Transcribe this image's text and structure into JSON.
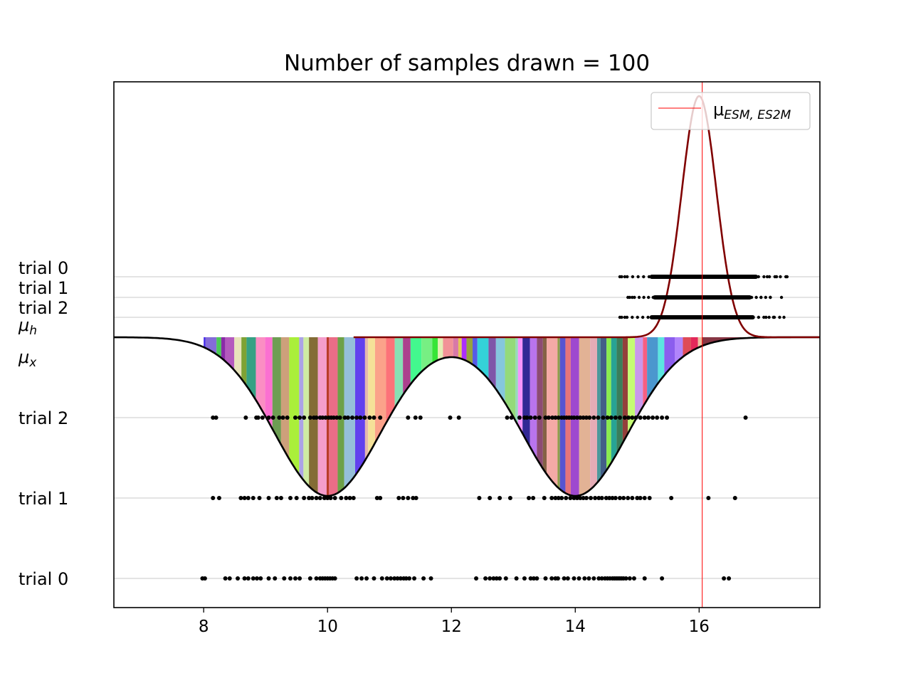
{
  "chart_data": {
    "type": "scatter",
    "title": "Number of samples drawn = 100",
    "xlabel": "",
    "ylabel": "",
    "xlim": [
      6.55,
      17.95
    ],
    "x_ticks": [
      "8",
      "10",
      "12",
      "14",
      "16"
    ],
    "x_tick_values": [
      8,
      10,
      12,
      14,
      16
    ],
    "y_labels": [
      {
        "id": "x0",
        "text": "trial 0",
        "sub": ""
      },
      {
        "id": "x1",
        "text": "trial 1",
        "sub": ""
      },
      {
        "id": "x2",
        "text": "trial 2",
        "sub": ""
      },
      {
        "id": "mux",
        "text": "μ",
        "sub": "x"
      },
      {
        "id": "muh",
        "text": "μ",
        "sub": "h"
      },
      {
        "id": "h2",
        "text": "trial 2",
        "sub": ""
      },
      {
        "id": "h1",
        "text": "trial 1",
        "sub": ""
      },
      {
        "id": "h0",
        "text": "trial 0",
        "sub": ""
      }
    ],
    "grid": "horizontal lines at trial rows",
    "legend": {
      "position": "top-right",
      "label": "μ",
      "label_sub": "ESM, ES2M",
      "color": "#ff0000"
    },
    "vline": {
      "x": 16.05,
      "color": "#ff0000"
    },
    "curves": {
      "input_density": {
        "color": "#000000",
        "modes": [
          10,
          14
        ],
        "sigma": 0.85,
        "description": "bimodal density plotted downward from baseline"
      },
      "output_density": {
        "color": "#800000",
        "mean": 16.0,
        "sigma": 0.28,
        "description": "unimodal density plotted upward from baseline"
      }
    },
    "samples_input": {
      "trial 0": [
        7.98,
        8.02,
        8.35,
        8.42,
        8.55,
        8.66,
        8.72,
        8.8,
        8.86,
        8.92,
        9.05,
        9.15,
        9.3,
        9.4,
        9.48,
        9.55,
        9.72,
        9.82,
        9.88,
        9.92,
        9.96,
        10.0,
        10.04,
        10.08,
        10.12,
        10.47,
        10.55,
        10.63,
        10.75,
        10.88,
        10.96,
        11.02,
        11.08,
        11.13,
        11.18,
        11.23,
        11.27,
        11.32,
        11.4,
        11.55,
        11.67,
        12.4,
        12.55,
        12.62,
        12.68,
        12.73,
        12.78,
        12.88,
        13.05,
        13.18,
        13.28,
        13.33,
        13.38,
        13.52,
        13.62,
        13.68,
        13.72,
        13.82,
        13.88,
        13.98,
        14.06,
        14.15,
        14.22,
        14.3,
        14.38,
        14.43,
        14.48,
        14.52,
        14.56,
        14.6,
        14.63,
        14.66,
        14.69,
        14.72,
        14.75,
        14.78,
        14.82,
        14.88,
        14.95,
        15.12,
        15.4,
        16.4,
        16.48
      ],
      "trial 1": [
        8.15,
        8.25,
        8.6,
        8.66,
        8.72,
        8.8,
        8.9,
        9.05,
        9.18,
        9.25,
        9.4,
        9.5,
        9.62,
        9.7,
        9.75,
        9.82,
        9.88,
        9.95,
        10.0,
        10.05,
        10.12,
        10.22,
        10.3,
        10.36,
        10.42,
        10.8,
        10.85,
        11.15,
        11.22,
        11.3,
        11.38,
        11.43,
        12.45,
        12.62,
        12.78,
        12.95,
        13.25,
        13.32,
        13.5,
        13.62,
        13.68,
        13.73,
        13.78,
        13.85,
        13.92,
        13.98,
        14.03,
        14.08,
        14.13,
        14.18,
        14.25,
        14.32,
        14.38,
        14.43,
        14.5,
        14.55,
        14.6,
        14.65,
        14.72,
        14.78,
        14.85,
        14.92,
        15.0,
        15.05,
        15.12,
        15.2,
        15.55,
        16.15,
        16.58
      ],
      "trial 2": [
        8.15,
        8.2,
        8.68,
        8.85,
        8.88,
        8.95,
        9.05,
        9.12,
        9.22,
        9.28,
        9.35,
        9.48,
        9.55,
        9.62,
        9.72,
        9.78,
        9.82,
        9.88,
        9.92,
        9.97,
        10.02,
        10.06,
        10.1,
        10.15,
        10.2,
        10.28,
        10.33,
        10.4,
        10.47,
        10.53,
        10.6,
        10.68,
        10.75,
        10.85,
        11.3,
        11.42,
        11.5,
        11.98,
        12.12,
        12.9,
        12.97,
        13.1,
        13.18,
        13.22,
        13.28,
        13.35,
        13.42,
        13.52,
        13.57,
        13.63,
        13.68,
        13.73,
        13.78,
        13.82,
        13.86,
        13.9,
        13.94,
        13.98,
        14.03,
        14.08,
        14.13,
        14.18,
        14.23,
        14.3,
        14.37,
        14.45,
        14.52,
        14.58,
        14.65,
        14.72,
        14.8,
        14.86,
        14.92,
        14.98,
        15.05,
        15.12,
        15.18,
        15.25,
        15.32,
        15.4,
        15.48,
        16.75
      ]
    },
    "samples_output": {
      "trial 0": {
        "range": [
          14.75,
          17.4
        ],
        "dense_range": [
          15.2,
          16.95
        ],
        "isolated": [
          14.72,
          14.8,
          17.1,
          17.25,
          17.42
        ]
      },
      "trial 1": {
        "range": [
          14.88,
          17.15
        ],
        "dense_range": [
          15.25,
          16.85
        ],
        "isolated": [
          14.85,
          14.92,
          17.0,
          17.15,
          17.33
        ]
      },
      "trial 2": {
        "range": [
          14.75,
          17.3
        ],
        "dense_range": [
          15.2,
          16.9
        ],
        "isolated": [
          14.72,
          14.8,
          17.08,
          17.2,
          17.37
        ]
      }
    }
  }
}
